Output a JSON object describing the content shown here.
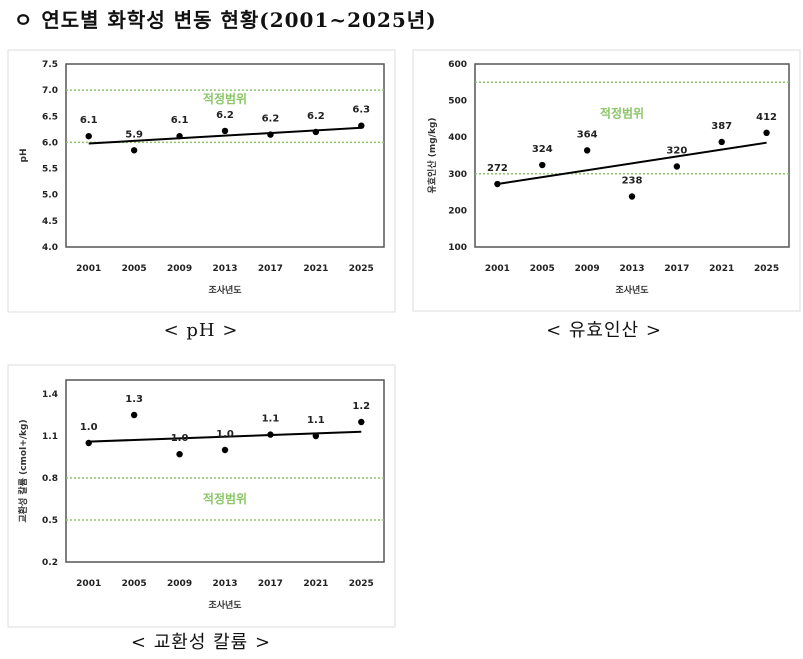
{
  "title": "ㅇ 연도별 화학성 변동 현황(2001~2025년)",
  "colors": {
    "optimal_line": "#8cc66a",
    "optimal_text": "#8cc66a",
    "points": "#000000",
    "trend": "#000000",
    "frame": "#555555"
  },
  "chart_data": [
    {
      "type": "scatter",
      "caption": "< pH >",
      "xlabel": "조사년도",
      "ylabel": "pH",
      "categories": [
        "2001",
        "2005",
        "2009",
        "2013",
        "2017",
        "2021",
        "2025"
      ],
      "values": [
        6.12,
        5.85,
        6.12,
        6.22,
        6.15,
        6.2,
        6.32
      ],
      "data_labels": [
        "6.1",
        "5.9",
        "6.1",
        "6.2",
        "6.2",
        "6.2",
        "6.3"
      ],
      "ylim": [
        4.0,
        7.5
      ],
      "yticks": [
        "4.0",
        "4.5",
        "5.0",
        "5.5",
        "6.0",
        "6.5",
        "7.0",
        "7.5"
      ],
      "trendline": [
        5.98,
        6.28
      ],
      "optimal_range": [
        6.0,
        7.0
      ],
      "optimal_label": "적정범위",
      "grid": false
    },
    {
      "type": "scatter",
      "caption": "< 유효인산 >",
      "xlabel": "조사년도",
      "ylabel": "유효인산 (mg/kg)",
      "categories": [
        "2001",
        "2005",
        "2009",
        "2013",
        "2017",
        "2021",
        "2025"
      ],
      "values": [
        272,
        324,
        364,
        238,
        320,
        387,
        412
      ],
      "data_labels": [
        "272",
        "324",
        "364",
        "238",
        "320",
        "387",
        "412"
      ],
      "ylim": [
        100,
        600
      ],
      "yticks": [
        "100",
        "200",
        "300",
        "400",
        "500",
        "600"
      ],
      "trendline": [
        272,
        385
      ],
      "optimal_range": [
        300,
        550
      ],
      "optimal_label": "적정범위",
      "grid": false
    },
    {
      "type": "scatter",
      "caption": "< 교환성 칼륨 >",
      "xlabel": "조사년도",
      "ylabel": "교환성 칼륨 (cmol+/kg)",
      "categories": [
        "2001",
        "2005",
        "2009",
        "2013",
        "2017",
        "2021",
        "2025"
      ],
      "values": [
        1.05,
        1.25,
        0.97,
        1.0,
        1.11,
        1.1,
        1.2
      ],
      "data_labels": [
        "1.0",
        "1.3",
        "1.0",
        "1.0",
        "1.1",
        "1.1",
        "1.2"
      ],
      "ylim": [
        0.2,
        1.5
      ],
      "yticks": [
        "0.2",
        "0.5",
        "0.8",
        "1.1",
        "1.4"
      ],
      "trendline": [
        1.06,
        1.13
      ],
      "optimal_range": [
        0.5,
        0.8
      ],
      "optimal_label": "적정범위",
      "grid": false
    }
  ]
}
